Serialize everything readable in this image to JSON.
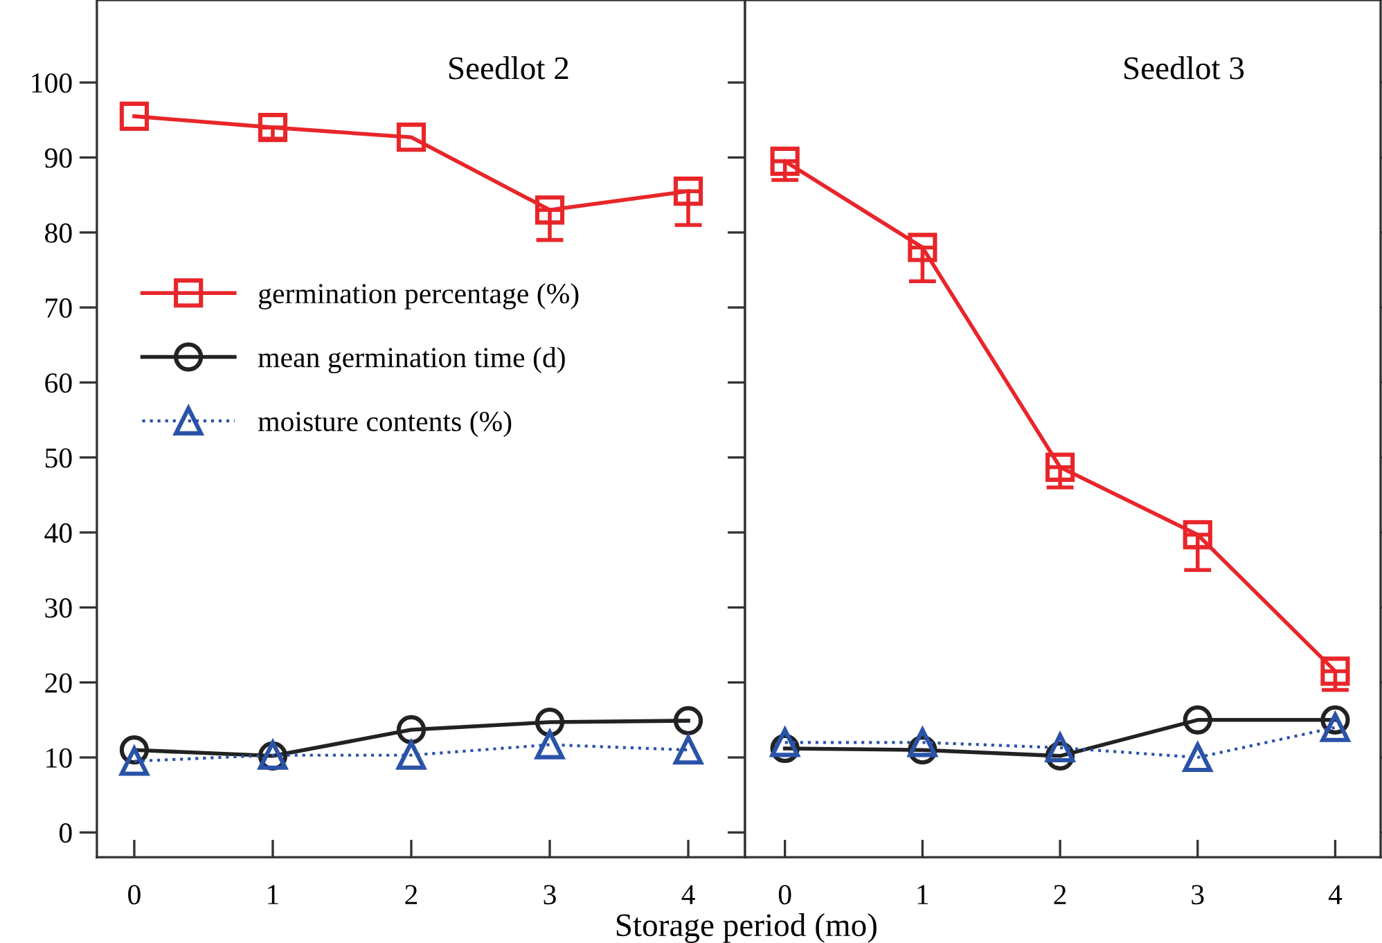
{
  "chart_data": [
    {
      "type": "line",
      "title": "Seedlot 2",
      "xlabel": "Storage period (mo)",
      "x": [
        0,
        1,
        2,
        3,
        4
      ],
      "xlim": [
        -0.27,
        4.41
      ],
      "xticks": [
        0,
        1,
        2,
        3,
        4
      ],
      "ylim": [
        -3.3,
        111
      ],
      "yticks": [
        0,
        10,
        20,
        30,
        40,
        50,
        60,
        70,
        80,
        90,
        100
      ],
      "tick_labels": "xy",
      "grid": false,
      "legend": "center left",
      "series": [
        {
          "name": "germination percentage (%)",
          "color": "#e8262a",
          "marker": "square",
          "line_style": "solid",
          "values": [
            95.5,
            94,
            92.7,
            83,
            85.5
          ],
          "errors": [
            null,
            [
              92.5,
              94
            ],
            null,
            [
              79,
              83
            ],
            [
              81,
              85.5
            ]
          ]
        },
        {
          "name": "mean germination time (d)",
          "color": "#222222",
          "marker": "circle",
          "line_style": "solid",
          "values": [
            11,
            10.2,
            13.7,
            14.7,
            14.9
          ]
        },
        {
          "name": "moisture contents (%)",
          "color": "#2a52a8",
          "marker": "triangle",
          "line_style": "dotted",
          "values": [
            9.5,
            10.3,
            10.3,
            11.7,
            11
          ]
        }
      ]
    },
    {
      "type": "line",
      "title": "Seedlot 3",
      "x": [
        0,
        1,
        2,
        3,
        4
      ],
      "xlim": [
        -0.29,
        4.33
      ],
      "xticks": [
        0,
        1,
        2,
        3,
        4
      ],
      "ylim": [
        -3.3,
        111
      ],
      "yticks": [
        0,
        10,
        20,
        30,
        40,
        50,
        60,
        70,
        80,
        90,
        100
      ],
      "tick_labels": "x",
      "grid": false,
      "series": [
        {
          "color": "#e8262a",
          "marker": "square",
          "line_style": "solid",
          "values": [
            89.5,
            78,
            48.7,
            39.7,
            21.5
          ],
          "errors": [
            [
              87,
              89.5
            ],
            [
              73.5,
              78
            ],
            [
              46,
              48.7
            ],
            [
              35,
              39.7
            ],
            [
              19,
              21.5
            ]
          ]
        },
        {
          "color": "#222222",
          "marker": "circle",
          "line_style": "solid",
          "values": [
            11.2,
            11,
            10.2,
            15,
            15
          ]
        },
        {
          "color": "#2a52a8",
          "marker": "triangle",
          "line_style": "dotted",
          "values": [
            12,
            12,
            11.3,
            10,
            14
          ]
        }
      ]
    }
  ]
}
